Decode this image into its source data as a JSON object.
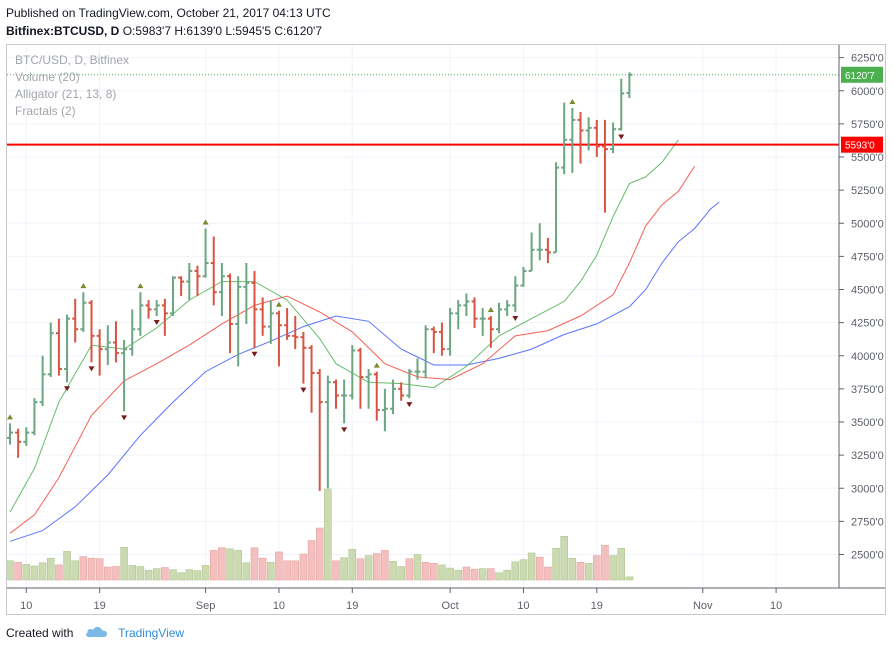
{
  "header": {
    "published": "Published on TradingView.com, October 21, 2017 04:13 UTC",
    "symbol": "Bitfinex:BTCUSD, D",
    "ohlc": "O:5983'7 H:6139'0 L:5945'5 C:6120'7"
  },
  "legend": {
    "title": "BTC/USD, D, Bitfinex",
    "volume": "Volume (20)",
    "alligator": "Alligator (21, 13, 8)",
    "fractals": "Fractals (2)"
  },
  "footer": {
    "created_with": "Created with",
    "brand": "TradingView"
  },
  "chart_data": {
    "type": "ohlc",
    "ylim": [
      2300,
      6300
    ],
    "y_ticks": [
      "6250'0",
      "6000'0",
      "5750'0",
      "5500'0",
      "5250'0",
      "5000'0",
      "4750'0",
      "4500'0",
      "4250'0",
      "4000'0",
      "3750'0",
      "3500'0",
      "3250'0",
      "3000'0",
      "2750'0",
      "2500'0"
    ],
    "x_ticks": [
      {
        "label": "10",
        "index": 2
      },
      {
        "label": "19",
        "index": 11
      },
      {
        "label": "Sep",
        "index": 24
      },
      {
        "label": "10",
        "index": 33
      },
      {
        "label": "19",
        "index": 42
      },
      {
        "label": "Oct",
        "index": 54
      },
      {
        "label": "10",
        "index": 63
      },
      {
        "label": "19",
        "index": 72
      },
      {
        "label": "Nov",
        "index": 85
      },
      {
        "label": "10",
        "index": 94
      }
    ],
    "last_price": {
      "label": "6120'7",
      "value": 6120.7,
      "color": "#4caf50"
    },
    "horizontal_line": {
      "label": "5593'0",
      "value": 5593,
      "color": "#ff0000"
    },
    "up_color": "#6ba583",
    "down_color": "#d75442",
    "bars": [
      {
        "o": 3380,
        "h": 3490,
        "l": 3330,
        "c": 3420
      },
      {
        "o": 3420,
        "h": 3450,
        "l": 3230,
        "c": 3350
      },
      {
        "o": 3350,
        "h": 3460,
        "l": 3320,
        "c": 3420
      },
      {
        "o": 3420,
        "h": 3680,
        "l": 3400,
        "c": 3650
      },
      {
        "o": 3650,
        "h": 4000,
        "l": 3620,
        "c": 3860
      },
      {
        "o": 3860,
        "h": 4250,
        "l": 3840,
        "c": 4170
      },
      {
        "o": 4170,
        "h": 4280,
        "l": 3850,
        "c": 3900
      },
      {
        "o": 3900,
        "h": 4310,
        "l": 3800,
        "c": 4280
      },
      {
        "o": 4280,
        "h": 4430,
        "l": 4100,
        "c": 4200
      },
      {
        "o": 4200,
        "h": 4480,
        "l": 4180,
        "c": 4400
      },
      {
        "o": 4400,
        "h": 4420,
        "l": 3950,
        "c": 4150
      },
      {
        "o": 4150,
        "h": 4200,
        "l": 3850,
        "c": 4050
      },
      {
        "o": 4050,
        "h": 4230,
        "l": 3930,
        "c": 4100
      },
      {
        "o": 4100,
        "h": 4260,
        "l": 3950,
        "c": 4020
      },
      {
        "o": 4020,
        "h": 4120,
        "l": 3580,
        "c": 4050
      },
      {
        "o": 4050,
        "h": 4350,
        "l": 4000,
        "c": 4200
      },
      {
        "o": 4200,
        "h": 4480,
        "l": 4150,
        "c": 4380
      },
      {
        "o": 4380,
        "h": 4420,
        "l": 4280,
        "c": 4350
      },
      {
        "o": 4350,
        "h": 4420,
        "l": 4300,
        "c": 4380
      },
      {
        "o": 4380,
        "h": 4430,
        "l": 4150,
        "c": 4320
      },
      {
        "o": 4320,
        "h": 4600,
        "l": 4300,
        "c": 4590
      },
      {
        "o": 4590,
        "h": 4600,
        "l": 4450,
        "c": 4560
      },
      {
        "o": 4560,
        "h": 4700,
        "l": 4420,
        "c": 4640
      },
      {
        "o": 4640,
        "h": 4680,
        "l": 4450,
        "c": 4600
      },
      {
        "o": 4600,
        "h": 4960,
        "l": 4590,
        "c": 4700
      },
      {
        "o": 4700,
        "h": 4900,
        "l": 4380,
        "c": 4480
      },
      {
        "o": 4480,
        "h": 4700,
        "l": 4300,
        "c": 4600
      },
      {
        "o": 4600,
        "h": 4620,
        "l": 4020,
        "c": 4240
      },
      {
        "o": 4240,
        "h": 4600,
        "l": 3920,
        "c": 4520
      },
      {
        "o": 4520,
        "h": 4700,
        "l": 4240,
        "c": 4550
      },
      {
        "o": 4550,
        "h": 4640,
        "l": 4060,
        "c": 4350
      },
      {
        "o": 4350,
        "h": 4440,
        "l": 4150,
        "c": 4220
      },
      {
        "o": 4220,
        "h": 4420,
        "l": 4090,
        "c": 4320
      },
      {
        "o": 4320,
        "h": 4340,
        "l": 3920,
        "c": 4230
      },
      {
        "o": 4230,
        "h": 4360,
        "l": 4120,
        "c": 4150
      },
      {
        "o": 4150,
        "h": 4300,
        "l": 4050,
        "c": 4140
      },
      {
        "o": 4140,
        "h": 4180,
        "l": 3790,
        "c": 4060
      },
      {
        "o": 4060,
        "h": 4080,
        "l": 3570,
        "c": 3870
      },
      {
        "o": 3870,
        "h": 3900,
        "l": 2980,
        "c": 3650
      },
      {
        "o": 3650,
        "h": 3850,
        "l": 3000,
        "c": 3800
      },
      {
        "o": 3800,
        "h": 3820,
        "l": 3600,
        "c": 3700
      },
      {
        "o": 3700,
        "h": 3820,
        "l": 3490,
        "c": 3700
      },
      {
        "o": 3700,
        "h": 4080,
        "l": 3670,
        "c": 4040
      },
      {
        "o": 4040,
        "h": 4060,
        "l": 3600,
        "c": 3840
      },
      {
        "o": 3840,
        "h": 3900,
        "l": 3600,
        "c": 3860
      },
      {
        "o": 3860,
        "h": 3880,
        "l": 3510,
        "c": 3590
      },
      {
        "o": 3590,
        "h": 3750,
        "l": 3430,
        "c": 3600
      },
      {
        "o": 3600,
        "h": 3820,
        "l": 3560,
        "c": 3750
      },
      {
        "o": 3750,
        "h": 3800,
        "l": 3660,
        "c": 3700
      },
      {
        "o": 3700,
        "h": 3900,
        "l": 3680,
        "c": 3880
      },
      {
        "o": 3880,
        "h": 3980,
        "l": 3820,
        "c": 3880
      },
      {
        "o": 3880,
        "h": 4230,
        "l": 3830,
        "c": 4200
      },
      {
        "o": 4200,
        "h": 4220,
        "l": 4020,
        "c": 4180
      },
      {
        "o": 4180,
        "h": 4250,
        "l": 4000,
        "c": 4050
      },
      {
        "o": 4050,
        "h": 4360,
        "l": 4000,
        "c": 4320
      },
      {
        "o": 4320,
        "h": 4420,
        "l": 4200,
        "c": 4380
      },
      {
        "o": 4380,
        "h": 4470,
        "l": 4300,
        "c": 4410
      },
      {
        "o": 4410,
        "h": 4440,
        "l": 4210,
        "c": 4280
      },
      {
        "o": 4280,
        "h": 4360,
        "l": 4150,
        "c": 4280
      },
      {
        "o": 4280,
        "h": 4300,
        "l": 4060,
        "c": 4200
      },
      {
        "o": 4200,
        "h": 4400,
        "l": 4170,
        "c": 4350
      },
      {
        "o": 4350,
        "h": 4420,
        "l": 4300,
        "c": 4380
      },
      {
        "o": 4380,
        "h": 4600,
        "l": 4330,
        "c": 4530
      },
      {
        "o": 4530,
        "h": 4670,
        "l": 4520,
        "c": 4640
      },
      {
        "o": 4640,
        "h": 4930,
        "l": 4640,
        "c": 4800
      },
      {
        "o": 4800,
        "h": 5000,
        "l": 4720,
        "c": 4800
      },
      {
        "o": 4800,
        "h": 4890,
        "l": 4700,
        "c": 4780
      },
      {
        "o": 4780,
        "h": 5460,
        "l": 4780,
        "c": 5420
      },
      {
        "o": 5420,
        "h": 5910,
        "l": 5370,
        "c": 5630
      },
      {
        "o": 5630,
        "h": 5870,
        "l": 5380,
        "c": 5780
      },
      {
        "o": 5780,
        "h": 5840,
        "l": 5450,
        "c": 5700
      },
      {
        "o": 5700,
        "h": 5800,
        "l": 5550,
        "c": 5720
      },
      {
        "o": 5720,
        "h": 5780,
        "l": 5500,
        "c": 5580
      },
      {
        "o": 5580,
        "h": 5780,
        "l": 5080,
        "c": 5560
      },
      {
        "o": 5560,
        "h": 5760,
        "l": 5530,
        "c": 5710
      },
      {
        "o": 5710,
        "h": 6090,
        "l": 5700,
        "c": 5980
      },
      {
        "o": 5983.7,
        "h": 6139,
        "l": 5945.5,
        "c": 6120.7
      }
    ],
    "volume": [
      {
        "v": 0.37,
        "up": true
      },
      {
        "v": 0.34,
        "up": false
      },
      {
        "v": 0.3,
        "up": true
      },
      {
        "v": 0.27,
        "up": true
      },
      {
        "v": 0.33,
        "up": true
      },
      {
        "v": 0.42,
        "up": true
      },
      {
        "v": 0.29,
        "up": false
      },
      {
        "v": 0.55,
        "up": true
      },
      {
        "v": 0.37,
        "up": true
      },
      {
        "v": 0.45,
        "up": false
      },
      {
        "v": 0.42,
        "up": false
      },
      {
        "v": 0.41,
        "up": false
      },
      {
        "v": 0.25,
        "up": false
      },
      {
        "v": 0.26,
        "up": false
      },
      {
        "v": 0.63,
        "up": true
      },
      {
        "v": 0.28,
        "up": true
      },
      {
        "v": 0.26,
        "up": true
      },
      {
        "v": 0.19,
        "up": true
      },
      {
        "v": 0.22,
        "up": true
      },
      {
        "v": 0.24,
        "up": false
      },
      {
        "v": 0.2,
        "up": true
      },
      {
        "v": 0.14,
        "up": true
      },
      {
        "v": 0.2,
        "up": true
      },
      {
        "v": 0.18,
        "up": true
      },
      {
        "v": 0.28,
        "up": true
      },
      {
        "v": 0.57,
        "up": false
      },
      {
        "v": 0.62,
        "up": false
      },
      {
        "v": 0.6,
        "up": true
      },
      {
        "v": 0.57,
        "up": true
      },
      {
        "v": 0.33,
        "up": true
      },
      {
        "v": 0.62,
        "up": false
      },
      {
        "v": 0.42,
        "up": false
      },
      {
        "v": 0.34,
        "up": true
      },
      {
        "v": 0.54,
        "up": false
      },
      {
        "v": 0.37,
        "up": false
      },
      {
        "v": 0.37,
        "up": false
      },
      {
        "v": 0.5,
        "up": false
      },
      {
        "v": 0.76,
        "up": false
      },
      {
        "v": 1.0,
        "up": false
      },
      {
        "v": 1.75,
        "up": true
      },
      {
        "v": 0.37,
        "up": false
      },
      {
        "v": 0.43,
        "up": true
      },
      {
        "v": 0.59,
        "up": true
      },
      {
        "v": 0.41,
        "up": false
      },
      {
        "v": 0.47,
        "up": true
      },
      {
        "v": 0.51,
        "up": false
      },
      {
        "v": 0.57,
        "up": false
      },
      {
        "v": 0.36,
        "up": true
      },
      {
        "v": 0.26,
        "up": true
      },
      {
        "v": 0.41,
        "up": false
      },
      {
        "v": 0.49,
        "up": true
      },
      {
        "v": 0.34,
        "up": false
      },
      {
        "v": 0.32,
        "up": false
      },
      {
        "v": 0.29,
        "up": true
      },
      {
        "v": 0.23,
        "up": true
      },
      {
        "v": 0.19,
        "up": true
      },
      {
        "v": 0.25,
        "up": false
      },
      {
        "v": 0.21,
        "up": false
      },
      {
        "v": 0.22,
        "up": true
      },
      {
        "v": 0.22,
        "up": false
      },
      {
        "v": 0.14,
        "up": true
      },
      {
        "v": 0.19,
        "up": true
      },
      {
        "v": 0.35,
        "up": true
      },
      {
        "v": 0.39,
        "up": true
      },
      {
        "v": 0.52,
        "up": true
      },
      {
        "v": 0.44,
        "up": false
      },
      {
        "v": 0.25,
        "up": false
      },
      {
        "v": 0.61,
        "up": true
      },
      {
        "v": 0.84,
        "up": true
      },
      {
        "v": 0.42,
        "up": true
      },
      {
        "v": 0.34,
        "up": false
      },
      {
        "v": 0.32,
        "up": true
      },
      {
        "v": 0.47,
        "up": false
      },
      {
        "v": 0.67,
        "up": false
      },
      {
        "v": 0.47,
        "up": true
      },
      {
        "v": 0.61,
        "up": true
      },
      {
        "v": 0.06,
        "up": true
      }
    ],
    "alligator": {
      "jaw": {
        "color": "#3d5afe",
        "values": [
          [
            0,
            2600
          ],
          [
            4,
            2680
          ],
          [
            8,
            2860
          ],
          [
            12,
            3100
          ],
          [
            16,
            3400
          ],
          [
            20,
            3650
          ],
          [
            24,
            3880
          ],
          [
            28,
            4010
          ],
          [
            32,
            4110
          ],
          [
            36,
            4220
          ],
          [
            40,
            4300
          ],
          [
            44,
            4260
          ],
          [
            48,
            4050
          ],
          [
            52,
            3930
          ],
          [
            56,
            3930
          ],
          [
            60,
            3980
          ],
          [
            64,
            4050
          ],
          [
            68,
            4160
          ],
          [
            72,
            4240
          ],
          [
            76,
            4370
          ],
          [
            78,
            4500
          ],
          [
            80,
            4700
          ],
          [
            82,
            4860
          ],
          [
            84,
            4960
          ],
          [
            86,
            5110
          ],
          [
            87,
            5160
          ]
        ]
      },
      "teeth": {
        "color": "#f44336",
        "values": [
          [
            0,
            2660
          ],
          [
            3,
            2800
          ],
          [
            6,
            3080
          ],
          [
            10,
            3550
          ],
          [
            14,
            3810
          ],
          [
            18,
            3940
          ],
          [
            22,
            4080
          ],
          [
            26,
            4240
          ],
          [
            30,
            4380
          ],
          [
            34,
            4450
          ],
          [
            38,
            4330
          ],
          [
            42,
            4180
          ],
          [
            46,
            3940
          ],
          [
            50,
            3840
          ],
          [
            54,
            3820
          ],
          [
            58,
            3940
          ],
          [
            62,
            4150
          ],
          [
            66,
            4190
          ],
          [
            70,
            4300
          ],
          [
            74,
            4460
          ],
          [
            76,
            4700
          ],
          [
            78,
            4980
          ],
          [
            80,
            5140
          ],
          [
            82,
            5240
          ],
          [
            84,
            5430
          ]
        ]
      },
      "lips": {
        "color": "#4caf50",
        "values": [
          [
            0,
            2820
          ],
          [
            3,
            3150
          ],
          [
            6,
            3650
          ],
          [
            10,
            4080
          ],
          [
            14,
            4050
          ],
          [
            18,
            4210
          ],
          [
            22,
            4420
          ],
          [
            26,
            4560
          ],
          [
            30,
            4560
          ],
          [
            34,
            4420
          ],
          [
            38,
            4130
          ],
          [
            40,
            3940
          ],
          [
            44,
            3800
          ],
          [
            48,
            3790
          ],
          [
            52,
            3760
          ],
          [
            56,
            3920
          ],
          [
            60,
            4150
          ],
          [
            64,
            4280
          ],
          [
            68,
            4410
          ],
          [
            70,
            4560
          ],
          [
            72,
            4760
          ],
          [
            74,
            5050
          ],
          [
            76,
            5300
          ],
          [
            78,
            5350
          ],
          [
            80,
            5460
          ],
          [
            82,
            5630
          ]
        ]
      }
    },
    "fractals_up": [
      0,
      9,
      16,
      24,
      33,
      45,
      59,
      69
    ],
    "fractals_down": [
      7,
      10,
      14,
      18,
      30,
      36,
      41,
      49,
      62,
      75
    ]
  }
}
